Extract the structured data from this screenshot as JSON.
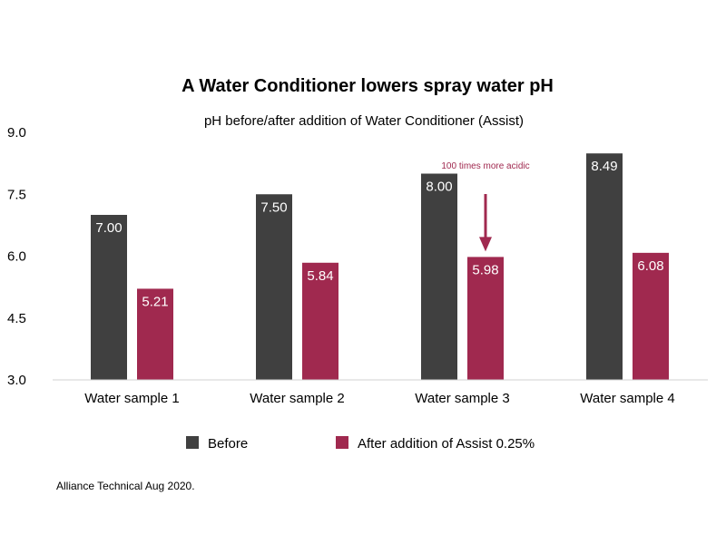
{
  "chart_data": {
    "type": "bar",
    "title": "A Water Conditioner lowers spray water pH",
    "subtitle": "pH before/after addition of Water Conditioner (Assist)",
    "categories": [
      "Water sample  1",
      "Water sample 2",
      "Water sample 3",
      "Water sample 4"
    ],
    "series": [
      {
        "name": "Before",
        "color": "#404040",
        "values": [
          7.0,
          7.5,
          8.0,
          8.49
        ],
        "labels": [
          "7.00",
          "7.50",
          "8.00",
          "8.49"
        ]
      },
      {
        "name": "After addition of Assist 0.25%",
        "color": "#a0294f",
        "values": [
          5.21,
          5.84,
          5.98,
          6.08
        ],
        "labels": [
          "5.21",
          "5.84",
          "5.98",
          "6.08"
        ]
      }
    ],
    "ylim": [
      3.0,
      9.0
    ],
    "yticks": [
      "9.0",
      "7.5",
      "6.0",
      "4.5",
      "3.0"
    ],
    "ytick_values": [
      9.0,
      7.5,
      6.0,
      4.5,
      3.0
    ],
    "grid": false,
    "legend_position": "bottom",
    "annotation": {
      "text": "100 times more acidic",
      "category_index": 2,
      "color": "#a0294f"
    },
    "source": "Alliance Technical Aug 2020."
  }
}
